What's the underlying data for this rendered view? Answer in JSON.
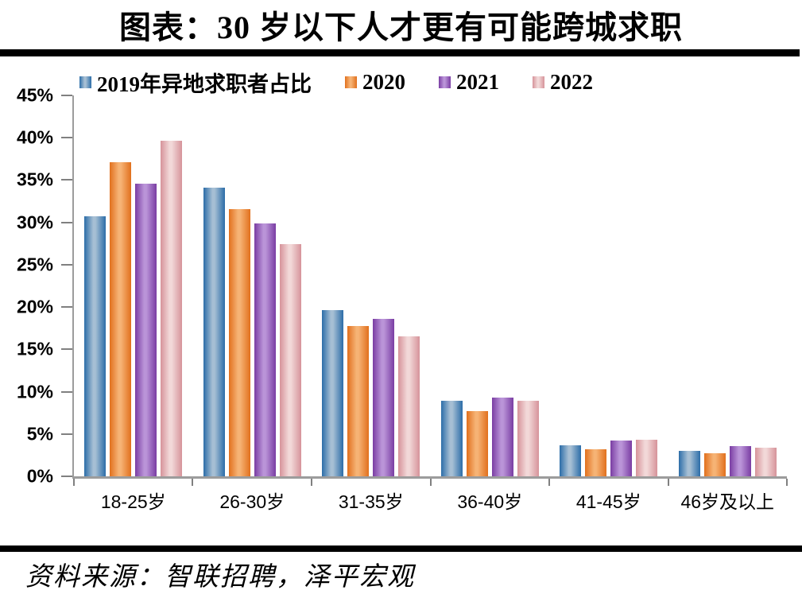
{
  "header": {
    "title": "图表：30 岁以下人才更有可能跨城求职"
  },
  "chart_data": {
    "type": "bar",
    "title": "图表：30 岁以下人才更有可能跨城求职",
    "categories": [
      "18-25岁",
      "26-30岁",
      "31-35岁",
      "36-40岁",
      "41-45岁",
      "46岁及以上"
    ],
    "series": [
      {
        "name": "2019年异地求职者占比",
        "color_dark": "#2C6DA8",
        "color_light": "#A6BFD4",
        "values": [
          30.7,
          34.1,
          19.6,
          8.9,
          3.7,
          3.0
        ]
      },
      {
        "name": "2020",
        "color_dark": "#E1701D",
        "color_light": "#F6B375",
        "values": [
          37.1,
          31.6,
          17.8,
          7.7,
          3.2,
          2.7
        ]
      },
      {
        "name": "2021",
        "color_dark": "#7A3DA3",
        "color_light": "#BA94D8",
        "values": [
          34.6,
          29.9,
          18.6,
          9.3,
          4.2,
          3.6
        ]
      },
      {
        "name": "2022",
        "color_dark": "#D6939A",
        "color_light": "#F2D8D8",
        "values": [
          39.6,
          27.4,
          16.5,
          8.9,
          4.3,
          3.4
        ]
      }
    ],
    "ylim": [
      0,
      45
    ],
    "ytick_step": 5,
    "ytick_suffix": "%",
    "legend_position": "top",
    "grid": false
  },
  "colors": {
    "axis_line": "#9c9c9c",
    "tick": "#808080",
    "rule": "#000000"
  },
  "footer": {
    "source": "资料来源：智联招聘，泽平宏观"
  }
}
